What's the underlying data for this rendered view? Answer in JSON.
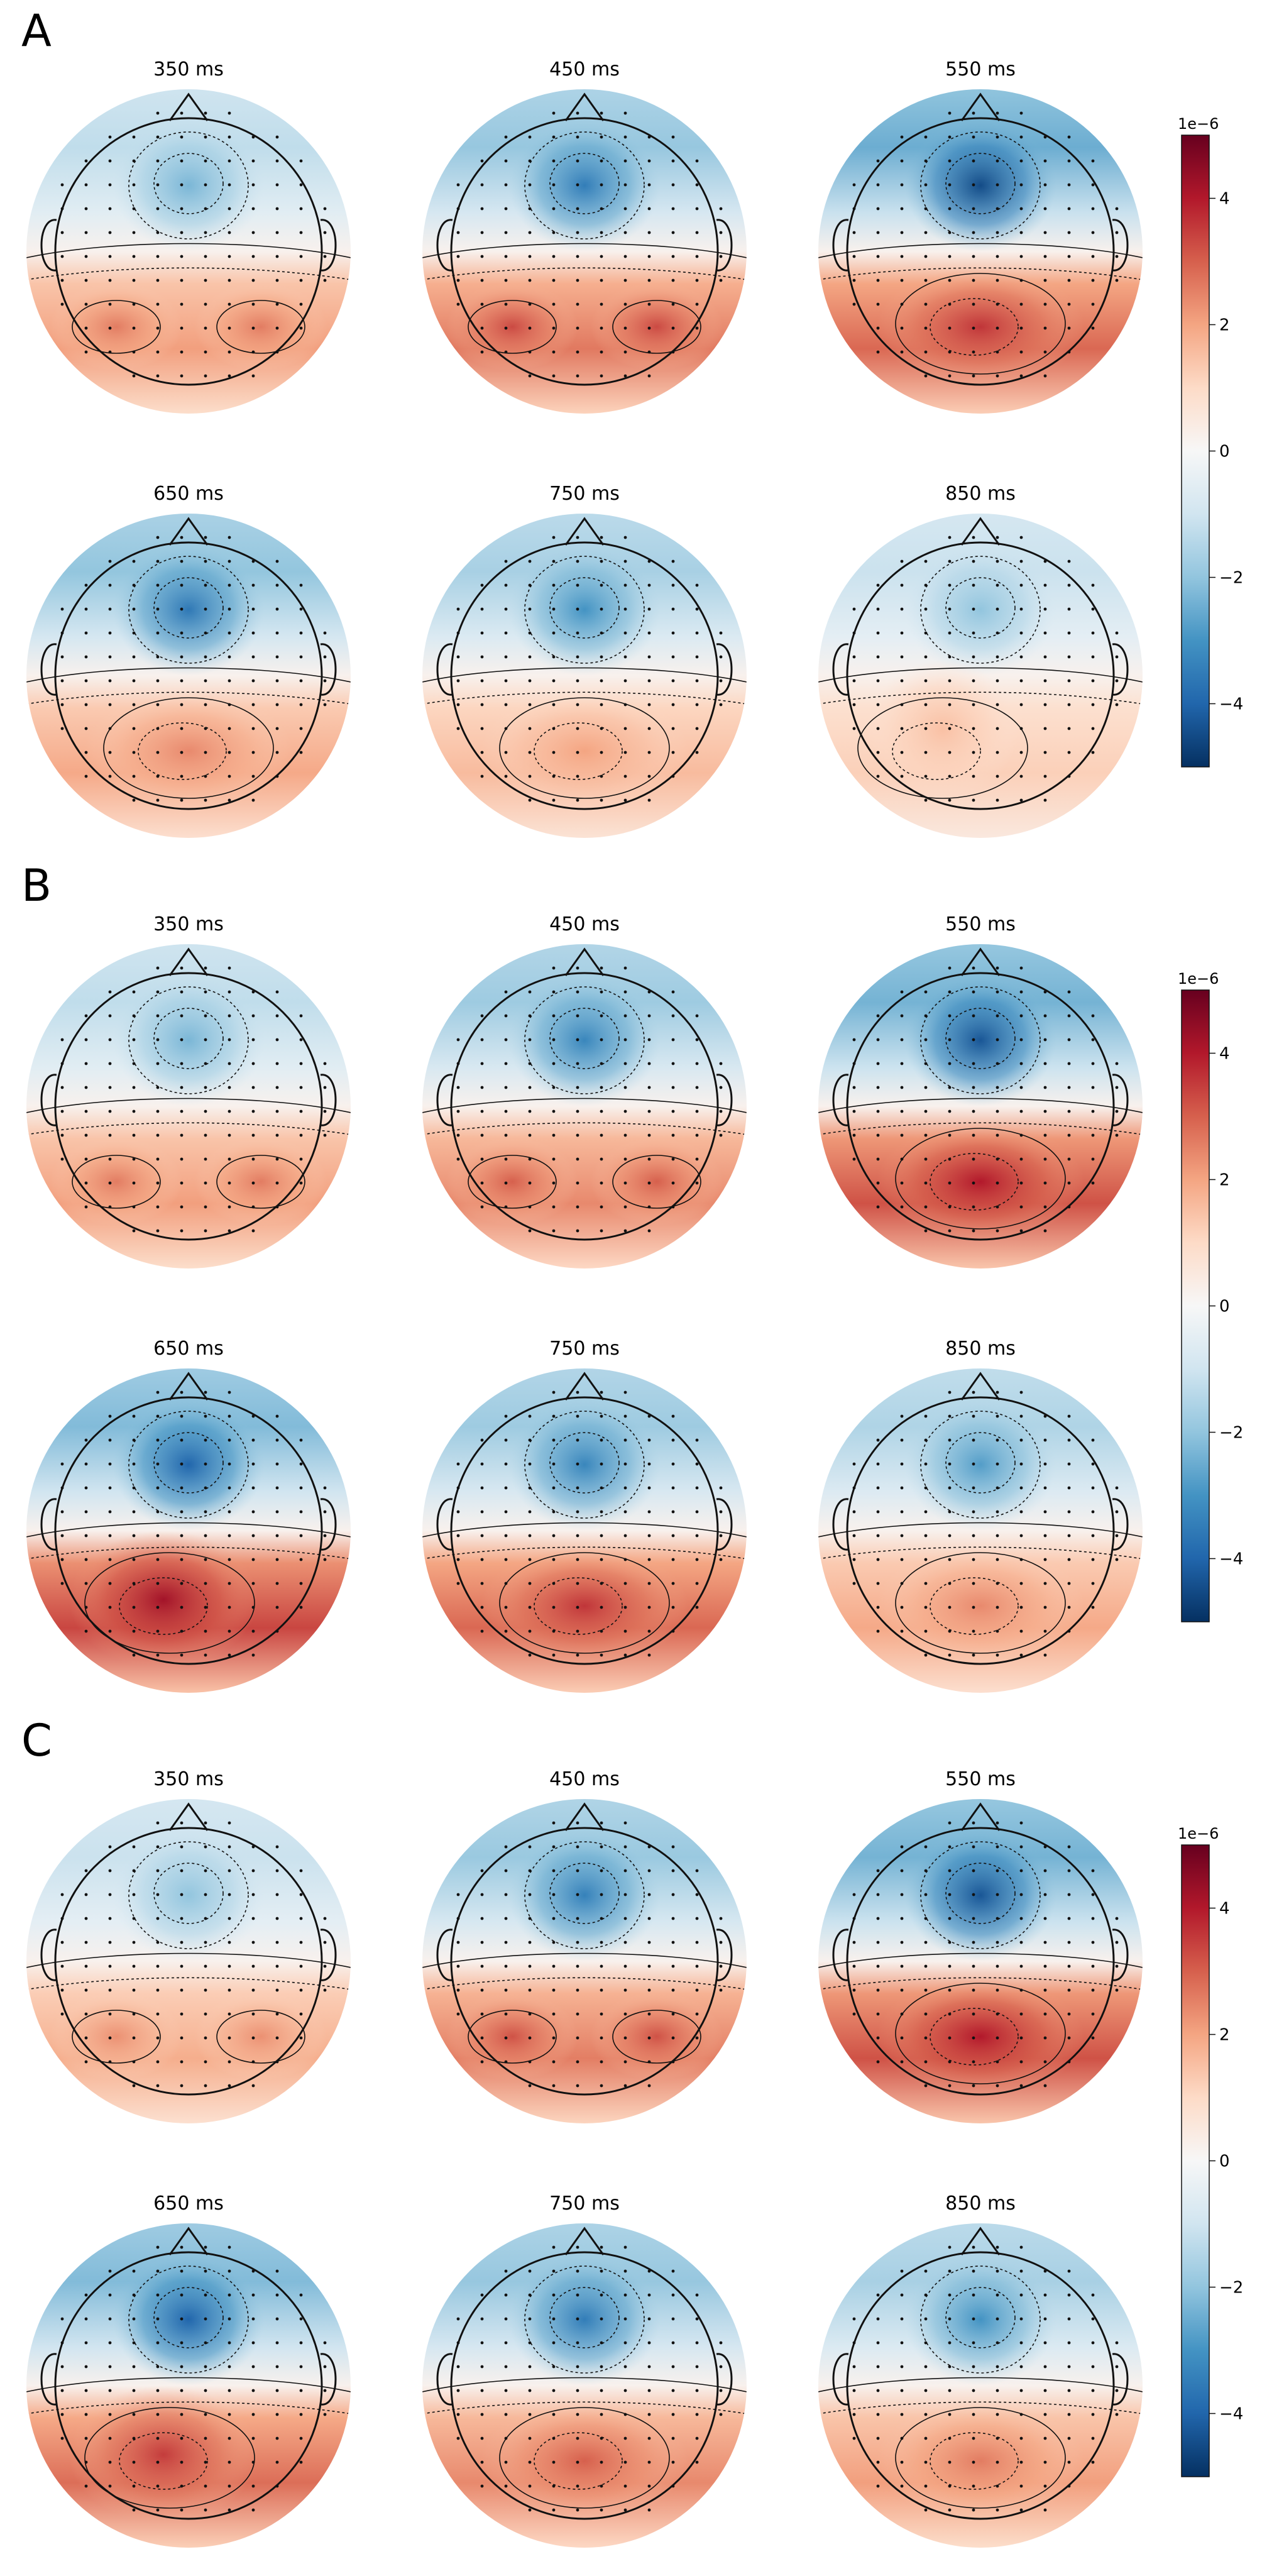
{
  "figure": {
    "panels": [
      {
        "letter": "A",
        "topomaps": [
          {
            "time": "350 ms",
            "front": -2.3,
            "post": 2.6,
            "pattern": "bilateral"
          },
          {
            "time": "450 ms",
            "front": -3.5,
            "post": 3.3,
            "pattern": "bilateral"
          },
          {
            "time": "550 ms",
            "front": -4.5,
            "post": 3.6,
            "pattern": "central"
          },
          {
            "time": "650 ms",
            "front": -3.6,
            "post": 2.4,
            "pattern": "central"
          },
          {
            "time": "750 ms",
            "front": -3.0,
            "post": 2.0,
            "pattern": "central"
          },
          {
            "time": "850 ms",
            "front": -2.0,
            "post": 1.5,
            "pattern": "left"
          }
        ],
        "colorbar": {
          "exponent": "1e−6",
          "ticks": [
            "4",
            "2",
            "0",
            "−2",
            "−4"
          ]
        }
      },
      {
        "letter": "B",
        "topomaps": [
          {
            "time": "350 ms",
            "front": -2.3,
            "post": 2.6,
            "pattern": "bilateral"
          },
          {
            "time": "450 ms",
            "front": -3.3,
            "post": 3.0,
            "pattern": "bilateral"
          },
          {
            "time": "550 ms",
            "front": -4.3,
            "post": 4.0,
            "pattern": "central"
          },
          {
            "time": "650 ms",
            "front": -4.0,
            "post": 4.2,
            "pattern": "leftcentral"
          },
          {
            "time": "750 ms",
            "front": -3.3,
            "post": 3.6,
            "pattern": "central"
          },
          {
            "time": "850 ms",
            "front": -2.8,
            "post": 2.4,
            "pattern": "central"
          }
        ],
        "colorbar": {
          "exponent": "1e−6",
          "ticks": [
            "4",
            "2",
            "0",
            "−2",
            "−4"
          ]
        }
      },
      {
        "letter": "C",
        "topomaps": [
          {
            "time": "350 ms",
            "front": -2.0,
            "post": 2.3,
            "pattern": "bilateral"
          },
          {
            "time": "450 ms",
            "front": -3.4,
            "post": 3.2,
            "pattern": "bilateral"
          },
          {
            "time": "550 ms",
            "front": -4.3,
            "post": 4.0,
            "pattern": "central"
          },
          {
            "time": "650 ms",
            "front": -4.0,
            "post": 3.5,
            "pattern": "leftcentral"
          },
          {
            "time": "750 ms",
            "front": -3.5,
            "post": 3.0,
            "pattern": "central"
          },
          {
            "time": "850 ms",
            "front": -3.0,
            "post": 2.6,
            "pattern": "central"
          }
        ],
        "colorbar": {
          "exponent": "1e−6",
          "ticks": [
            "4",
            "2",
            "0",
            "−2",
            "−4"
          ]
        }
      }
    ]
  },
  "chart_data": [
    {
      "type": "heatmap",
      "title": "A",
      "subplots": [
        "350 ms",
        "450 ms",
        "550 ms",
        "650 ms",
        "750 ms",
        "850 ms"
      ],
      "colorbar_range": [
        -5,
        5
      ],
      "colorbar_scale": "1e-6",
      "colorbar_ticks": [
        4,
        2,
        0,
        -2,
        -4
      ],
      "colormap": "RdBu_r"
    },
    {
      "type": "heatmap",
      "title": "B",
      "subplots": [
        "350 ms",
        "450 ms",
        "550 ms",
        "650 ms",
        "750 ms",
        "850 ms"
      ],
      "colorbar_range": [
        -5,
        5
      ],
      "colorbar_scale": "1e-6",
      "colorbar_ticks": [
        4,
        2,
        0,
        -2,
        -4
      ],
      "colormap": "RdBu_r"
    },
    {
      "type": "heatmap",
      "title": "C",
      "subplots": [
        "350 ms",
        "450 ms",
        "550 ms",
        "650 ms",
        "750 ms",
        "850 ms"
      ],
      "colorbar_range": [
        -5,
        5
      ],
      "colorbar_scale": "1e-6",
      "colorbar_ticks": [
        4,
        2,
        0,
        -2,
        -4
      ],
      "colormap": "RdBu_r"
    }
  ],
  "colors": {
    "neg_max": "#053061",
    "neg_mid": "#4393c3",
    "zero": "#f7f7f7",
    "pos_mid": "#f4a582",
    "pos_max": "#67001f"
  }
}
